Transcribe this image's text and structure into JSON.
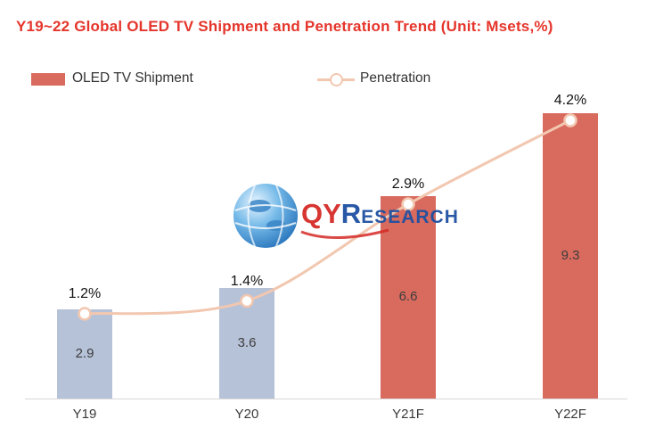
{
  "title": "Y19~22 Global OLED TV Shipment and Penetration Trend (Unit: Msets,%)",
  "legend": {
    "shipment_label": "OLED TV Shipment",
    "penetration_label": "Penetration"
  },
  "watermark": {
    "qy": "QY",
    "r": "R",
    "esearch": "ESEARCH"
  },
  "colors": {
    "title": "#e5352b",
    "bar_blue": "#b6c2d8",
    "bar_red": "#d96a5e",
    "line": "#f2c7b0",
    "axis": "#d9d9d9",
    "text": "#333333"
  },
  "chart_data": {
    "type": "bar",
    "title": "Y19~22 Global OLED TV Shipment and Penetration Trend",
    "unit": "Msets, %",
    "categories": [
      "Y19",
      "Y20",
      "Y21F",
      "Y22F"
    ],
    "series": [
      {
        "name": "OLED TV Shipment",
        "type": "bar",
        "unit": "Msets",
        "values": [
          2.9,
          3.6,
          6.6,
          9.3
        ],
        "colors": [
          "#b6c2d8",
          "#b6c2d8",
          "#d96a5e",
          "#d96a5e"
        ]
      },
      {
        "name": "Penetration",
        "type": "line",
        "unit": "%",
        "values": [
          1.2,
          1.4,
          2.9,
          4.2
        ],
        "labels": [
          "1.2%",
          "1.4%",
          "2.9%",
          "4.2%"
        ]
      }
    ],
    "ylim": [
      0,
      10
    ],
    "y2lim": [
      0,
      5
    ],
    "grid": false,
    "legend_position": "top"
  }
}
